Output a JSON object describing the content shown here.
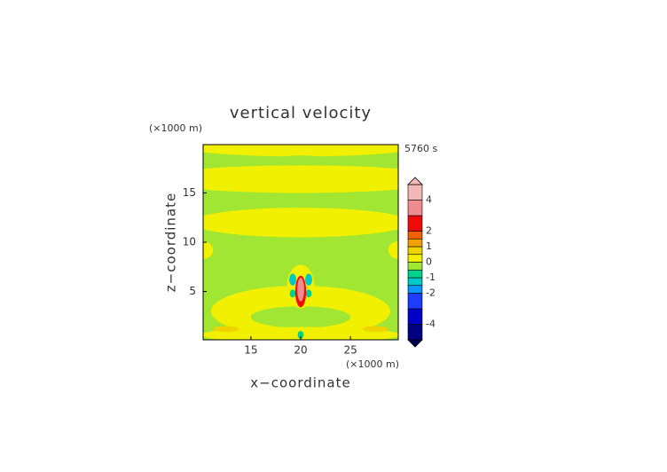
{
  "chart_data": {
    "type": "contour",
    "title": "vertical velocity",
    "time_label": "5760 s",
    "x_label": "x−coordinate",
    "y_label": "z−coordinate",
    "x_unit": "(×1000 m)",
    "y_unit": "(×1000 m)",
    "xlim": [
      10.2,
      29.8
    ],
    "ylim": [
      0.1,
      19.9
    ],
    "xticks": [
      15,
      20,
      25
    ],
    "yticks": [
      5,
      10,
      15
    ],
    "background_value": -0.2,
    "regions": [
      {
        "value": 0.2,
        "x": 20,
        "z": 19.9,
        "rx": 13,
        "rz": 1.2
      },
      {
        "value": -0.2,
        "x": 20,
        "z": 18.3,
        "rx": 3,
        "rz": 0.5
      },
      {
        "value": 0.2,
        "x": 20,
        "z": 16.4,
        "rx": 15,
        "rz": 1.4
      },
      {
        "value": 0.2,
        "x": 20,
        "z": 12,
        "rx": 11,
        "rz": 1.5
      },
      {
        "value": 0.2,
        "x": 10.2,
        "z": 9.2,
        "rx": 1,
        "rz": 0.9
      },
      {
        "value": 0.2,
        "x": 29.8,
        "z": 9.2,
        "rx": 1,
        "rz": 0.9
      },
      {
        "value": 0.2,
        "x": 20,
        "z": 3,
        "rx": 9,
        "rz": 2.6
      },
      {
        "value": -0.2,
        "x": 20,
        "z": 2.4,
        "rx": 5,
        "rz": 1.1
      },
      {
        "value": 0.2,
        "x": 20,
        "z": 0.6,
        "rx": 10,
        "rz": 0.8
      },
      {
        "value": 0.7,
        "x": 12.5,
        "z": 1.2,
        "rx": 1.3,
        "rz": 0.3
      },
      {
        "value": 0.7,
        "x": 27.5,
        "z": 1.2,
        "rx": 1.3,
        "rz": 0.3
      },
      {
        "value": 0.3,
        "x": 20,
        "z": 5.5,
        "rx": 1.4,
        "rz": 2.2
      },
      {
        "value": -1.2,
        "x": 19.2,
        "z": 6.2,
        "rx": 0.35,
        "rz": 0.6
      },
      {
        "value": -1.2,
        "x": 20.8,
        "z": 6.2,
        "rx": 0.35,
        "rz": 0.6
      },
      {
        "value": -0.8,
        "x": 19.2,
        "z": 4.8,
        "rx": 0.3,
        "rz": 0.4
      },
      {
        "value": -0.8,
        "x": 20.8,
        "z": 4.8,
        "rx": 0.3,
        "rz": 0.4
      },
      {
        "value": 2.5,
        "x": 20,
        "z": 5,
        "rx": 0.55,
        "rz": 1.6
      },
      {
        "value": 3.5,
        "x": 20,
        "z": 5.2,
        "rx": 0.35,
        "rz": 1.2
      },
      {
        "value": -0.8,
        "x": 20,
        "z": 0.6,
        "rx": 0.3,
        "rz": 0.4
      }
    ],
    "colorbar": {
      "levels": [
        -5,
        -4,
        -3,
        -2,
        -1.5,
        -1,
        -0.5,
        0,
        0.5,
        1,
        1.5,
        2,
        3,
        4,
        5
      ],
      "colors": [
        "#000080",
        "#0000c8",
        "#1e3cff",
        "#0a96ff",
        "#00c8c8",
        "#00d28c",
        "#a0e632",
        "#f0f000",
        "#f0d200",
        "#f0a000",
        "#f06000",
        "#f00a0a",
        "#f08c8c",
        "#f4b8b8"
      ],
      "ticks": [
        -4,
        -2,
        -1,
        0,
        1,
        2,
        4
      ]
    }
  }
}
